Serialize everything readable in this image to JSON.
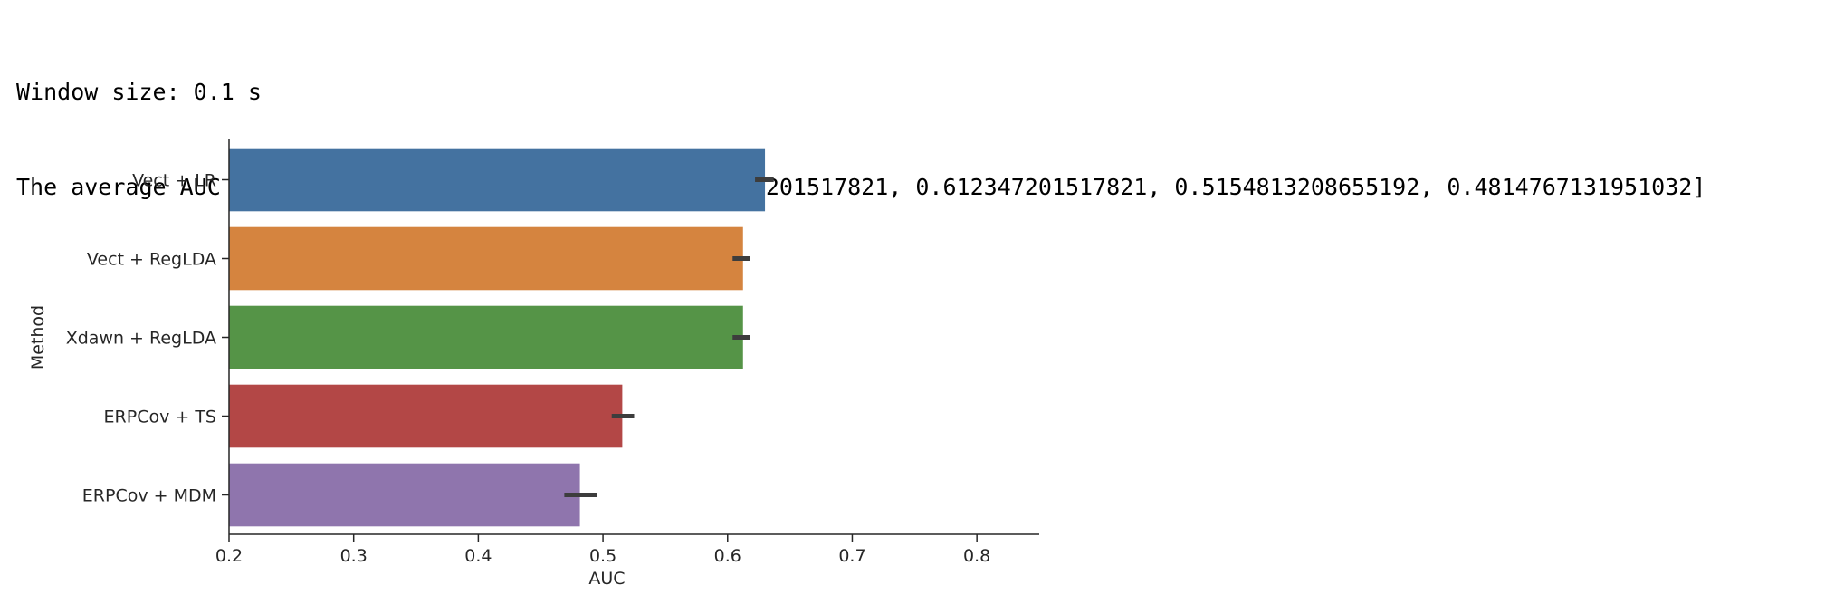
{
  "output": {
    "line1": "Window size: 0.1 s",
    "line2": "The average AUC score is: [0.6299855445634006, 0.612347201517821, 0.612347201517821, 0.5154813208655192, 0.4814767131951032]"
  },
  "chart_data": {
    "type": "bar",
    "orientation": "horizontal",
    "title": "",
    "xlabel": "AUC",
    "ylabel": "Method",
    "xlim": [
      0.2,
      0.85
    ],
    "xticks": [
      "0.2",
      "0.3",
      "0.4",
      "0.5",
      "0.6",
      "0.7",
      "0.8"
    ],
    "categories": [
      "Vect + LR",
      "Vect + RegLDA",
      "Xdawn + RegLDA",
      "ERPCov + TS",
      "ERPCov + MDM"
    ],
    "values": [
      0.6299855445634006,
      0.612347201517821,
      0.612347201517821,
      0.5154813208655192,
      0.4814767131951032
    ],
    "error_low": [
      0.622,
      0.604,
      0.604,
      0.507,
      0.469
    ],
    "error_high": [
      0.637,
      0.618,
      0.618,
      0.525,
      0.495
    ],
    "colors": [
      "#4472a0",
      "#d5843f",
      "#559447",
      "#b34746",
      "#8f75ad"
    ],
    "grid": false,
    "legend": "none"
  }
}
